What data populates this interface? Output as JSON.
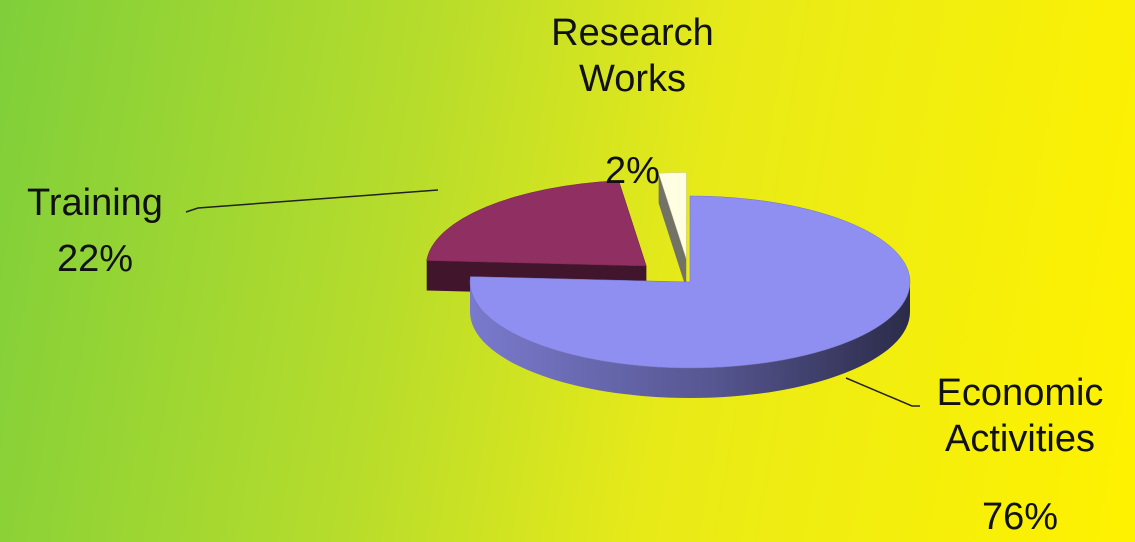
{
  "chart_data": {
    "type": "pie",
    "categories": [
      "Economic Activities",
      "Training",
      "Research Works"
    ],
    "values": [
      76,
      22,
      2
    ],
    "value_labels": [
      "76%",
      "22%",
      "2%"
    ],
    "colors": [
      "#8f8ff2",
      "#902f62",
      "#fffde2"
    ]
  }
}
